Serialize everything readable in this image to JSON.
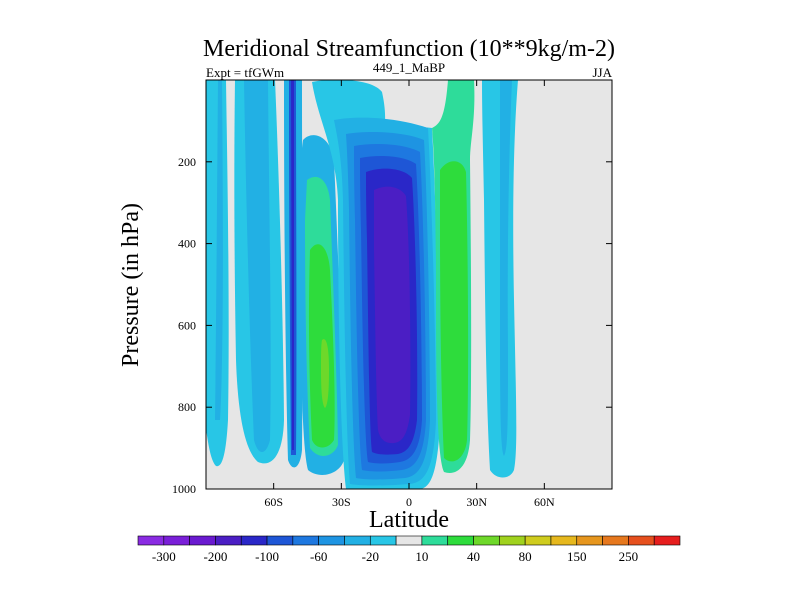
{
  "chart_data": {
    "type": "contour",
    "title": "Meridional Streamfunction (10**9kg/m-2)",
    "left_label": "Expt = tfGWm",
    "center_label": "449_1_MaBP",
    "right_label": "JJA",
    "xlabel": "Latitude",
    "ylabel": "Pressure (in hPa)",
    "xlim": [
      -90,
      90
    ],
    "ylim": [
      1000,
      0
    ],
    "x_ticks": [
      {
        "value": -60,
        "label": "60S"
      },
      {
        "value": -30,
        "label": "30S"
      },
      {
        "value": 0,
        "label": "0"
      },
      {
        "value": 30,
        "label": "30N"
      },
      {
        "value": 60,
        "label": "60N"
      }
    ],
    "y_ticks": [
      {
        "value": 200,
        "label": "200"
      },
      {
        "value": 400,
        "label": "400"
      },
      {
        "value": 600,
        "label": "600"
      },
      {
        "value": 800,
        "label": "800"
      },
      {
        "value": 1000,
        "label": "1000"
      }
    ],
    "colorbar": {
      "colors": [
        "#8a2be2",
        "#7a1fd8",
        "#6a1ad0",
        "#4b1ec4",
        "#2a27c8",
        "#1e56d6",
        "#1e78e0",
        "#1e94e2",
        "#22b0e4",
        "#28c6e6",
        "#e6e6e6",
        "#2edc9a",
        "#2edc3c",
        "#6ed82a",
        "#a0d21e",
        "#cfcc1e",
        "#e6b81e",
        "#e6961e",
        "#e6781e",
        "#e6501e",
        "#e61e1e"
      ],
      "labels": [
        "-300",
        "-200",
        "-100",
        "-60",
        "-20",
        "10",
        "40",
        "80",
        "150",
        "250"
      ]
    },
    "features": [
      {
        "name": "southern-high-latitude-cell",
        "lat_range": [
          -80,
          -64
        ],
        "p_range": [
          0,
          950
        ],
        "level": "-20"
      },
      {
        "name": "southern-mid-latitude-cell",
        "lat_range": [
          -62,
          -46
        ],
        "p_range": [
          0,
          960
        ],
        "level": "-20"
      },
      {
        "name": "southern-ferrel-line",
        "lat_range": [
          -51,
          -47
        ],
        "p_range": [
          0,
          950
        ],
        "level": "-60"
      },
      {
        "name": "southern-ferrel-cell",
        "lat_range": [
          -43,
          -24
        ],
        "p_range": [
          150,
          940
        ],
        "level": "40"
      },
      {
        "name": "southern-hadley-cell",
        "lat_range": [
          -26,
          10
        ],
        "p_range": [
          0,
          990
        ],
        "level": "-100"
      },
      {
        "name": "northern-hadley-cell",
        "lat_range": [
          9,
          30
        ],
        "p_range": [
          0,
          960
        ],
        "level": "40"
      },
      {
        "name": "northern-mid-latitude-cell",
        "lat_range": [
          31,
          40
        ],
        "p_range": [
          0,
          960
        ],
        "level": "-20"
      }
    ]
  }
}
